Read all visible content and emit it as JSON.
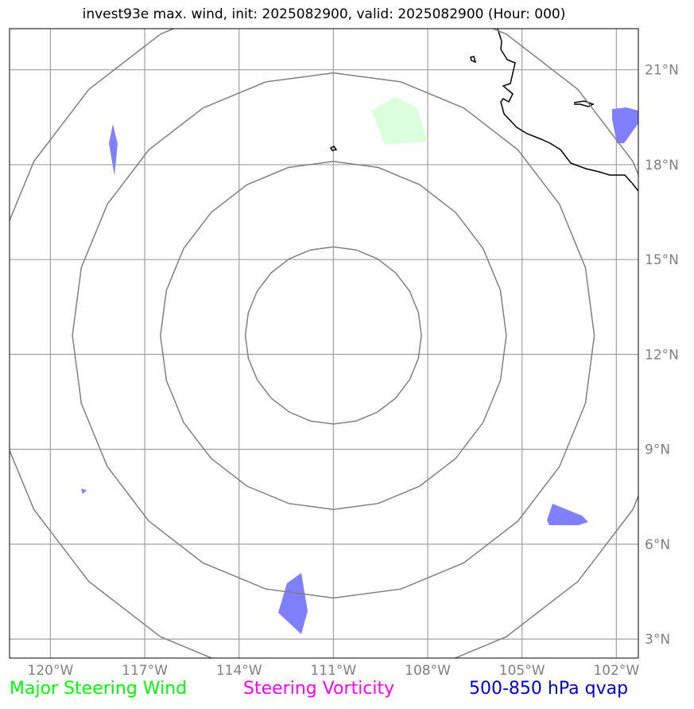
{
  "title": "invest93e max. wind, init: 2025082900, valid: 2025082900 (Hour: 000)",
  "map": {
    "lon_range": [
      -121.3,
      -101.3
    ],
    "lat_range": [
      2.4,
      22.3
    ],
    "lon_ticks": [
      {
        "value": -120,
        "label": "120°W"
      },
      {
        "value": -117,
        "label": "117°W"
      },
      {
        "value": -114,
        "label": "114°W"
      },
      {
        "value": -111,
        "label": "111°W"
      },
      {
        "value": -108,
        "label": "108°W"
      },
      {
        "value": -105,
        "label": "105°W"
      },
      {
        "value": -102,
        "label": "102°W"
      }
    ],
    "lat_ticks": [
      {
        "value": 3,
        "label": "3°N"
      },
      {
        "value": 6,
        "label": "6°N"
      },
      {
        "value": 9,
        "label": "9°N"
      },
      {
        "value": 12,
        "label": "12°N"
      },
      {
        "value": 15,
        "label": "15°N"
      },
      {
        "value": 18,
        "label": "18°N"
      },
      {
        "value": 21,
        "label": "21°N"
      }
    ],
    "center": {
      "lon": -111,
      "lat": 12.6
    },
    "range_rings_deg": [
      2.8,
      5.5,
      8.3,
      11.0
    ],
    "colors": {
      "grid": "#a0a0a0",
      "ring": "#808080",
      "coast": "#000000",
      "steering_wind": "#dcffdc",
      "qvap": "#8080ff"
    }
  },
  "legend": [
    {
      "label": "Major Steering Wind",
      "color": "#00ff00"
    },
    {
      "label": "Steering Vorticity",
      "color": "#ff00ff"
    },
    {
      "label": "500-850 hPa qvap",
      "color": "#0000cc"
    }
  ]
}
